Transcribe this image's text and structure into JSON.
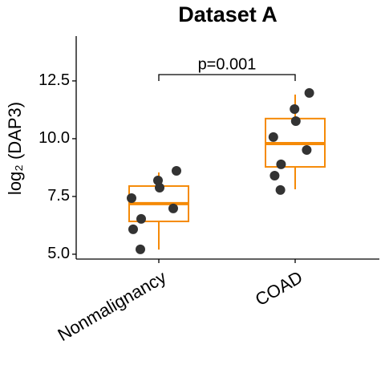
{
  "chart_data": {
    "type": "box",
    "title": "Dataset A",
    "y_label": "log₂ (DAP3)",
    "categories": [
      "Nonmalignancy",
      "COAD"
    ],
    "boxes": [
      {
        "low": 5.2,
        "q1": 6.42,
        "median": 7.19,
        "q3": 7.95,
        "high": 8.54,
        "points": [
          8.61,
          8.19,
          7.88,
          7.43,
          6.98,
          6.53,
          6.08,
          5.21
        ]
      },
      {
        "low": 7.81,
        "q1": 8.78,
        "median": 9.79,
        "q3": 10.87,
        "high": 11.91,
        "points": [
          11.98,
          11.28,
          10.76,
          10.07,
          9.51,
          8.89,
          8.4,
          7.78
        ]
      }
    ],
    "box_color": "#f58a07",
    "point_color": "#333333",
    "annotation": "p=0.001",
    "ylim": [
      4.79,
      14.44
    ],
    "yticks": [
      {
        "value": 5,
        "label": "5.0"
      },
      7.5,
      {
        "value": 10,
        "label": "10.0"
      },
      12.5
    ],
    "grid": false
  }
}
